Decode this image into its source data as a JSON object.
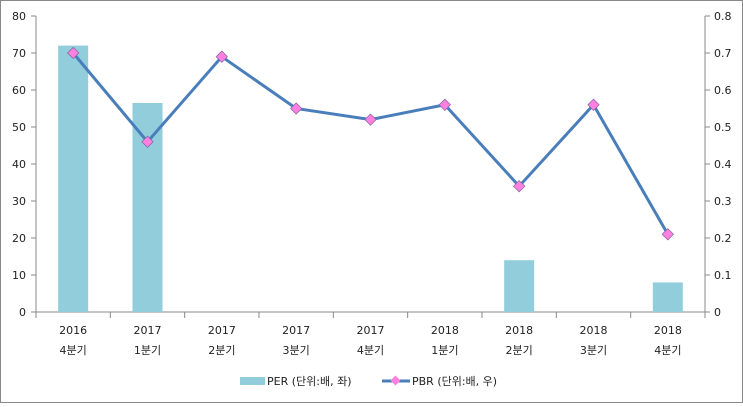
{
  "chart_data": {
    "type": "bar",
    "categories": [
      [
        "2016",
        "4분기"
      ],
      [
        "2017",
        "1분기"
      ],
      [
        "2017",
        "2분기"
      ],
      [
        "2017",
        "3분기"
      ],
      [
        "2017",
        "4분기"
      ],
      [
        "2018",
        "1분기"
      ],
      [
        "2018",
        "2분기"
      ],
      [
        "2018",
        "3분기"
      ],
      [
        "2018",
        "4분기"
      ]
    ],
    "series": [
      {
        "name": "PER (단위:배, 좌)",
        "type": "bar",
        "axis": "left",
        "color": "#92CDDC",
        "values": [
          72,
          56.5,
          null,
          null,
          null,
          null,
          14,
          null,
          8
        ]
      },
      {
        "name": "PBR (단위:배, 우)",
        "type": "line",
        "axis": "right",
        "color": "#4A7EBB",
        "marker_color": "#FF80E0",
        "values": [
          0.7,
          0.46,
          0.69,
          0.55,
          0.52,
          0.56,
          0.34,
          0.56,
          0.21
        ]
      }
    ],
    "y_left": {
      "range": [
        0,
        80
      ],
      "ticks": [
        "0",
        "10",
        "20",
        "30",
        "40",
        "50",
        "60",
        "70",
        "80"
      ]
    },
    "y_right": {
      "range": [
        0,
        0.8
      ],
      "ticks": [
        "0",
        "0.1",
        "0.2",
        "0.3",
        "0.4",
        "0.5",
        "0.6",
        "0.7",
        "0.8"
      ]
    },
    "grid": false,
    "legend": "bottom"
  }
}
